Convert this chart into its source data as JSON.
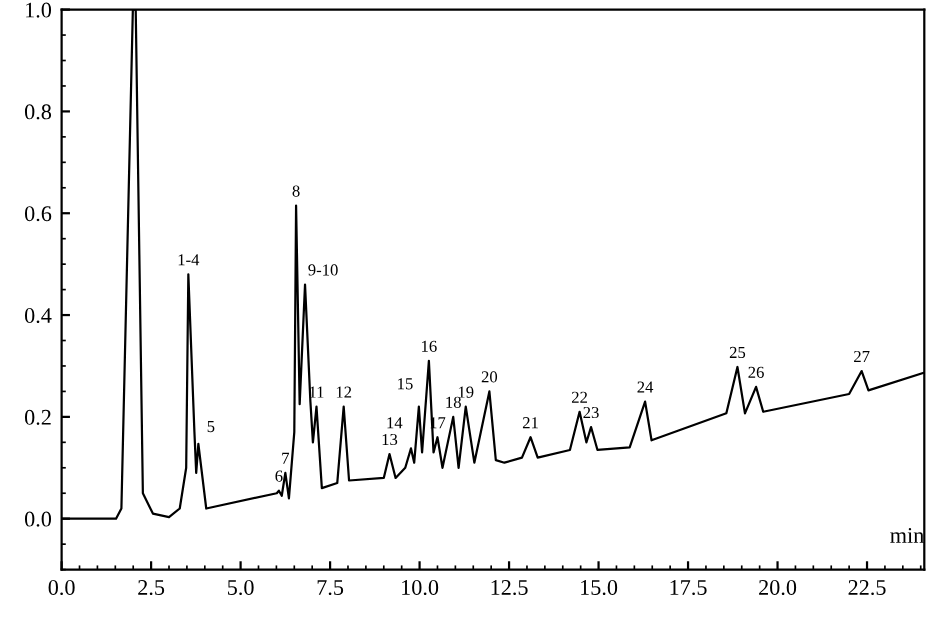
{
  "chart_data": {
    "type": "line",
    "xlabel": "min",
    "xlim": [
      0,
      24.1
    ],
    "ylim": [
      -0.1,
      1.0
    ],
    "xticks": [
      {
        "value": 0,
        "label": "0.0"
      },
      {
        "value": 2.5,
        "label": "2.5"
      },
      {
        "value": 5,
        "label": "5.0"
      },
      {
        "value": 7.5,
        "label": "7.5"
      },
      {
        "value": 10,
        "label": "10.0"
      },
      {
        "value": 12.5,
        "label": "12.5"
      },
      {
        "value": 15,
        "label": "15.0"
      },
      {
        "value": 17.5,
        "label": "17.5"
      },
      {
        "value": 20,
        "label": "20.0"
      },
      {
        "value": 22.5,
        "label": "22.5"
      }
    ],
    "yticks": [
      {
        "value": 0,
        "label": "0.0"
      },
      {
        "value": 0.2,
        "label": "0.2"
      },
      {
        "value": 0.4,
        "label": "0.4"
      },
      {
        "value": 0.6,
        "label": "0.6"
      },
      {
        "value": 0.8,
        "label": "0.8"
      },
      {
        "value": 1.0,
        "label": "1.0"
      }
    ],
    "grid": false,
    "marker": "none",
    "line_style": "solid",
    "series": [
      {
        "color": "#000000",
        "x": [
          0,
          1.52,
          1.67,
          1.99,
          2.07,
          2.27,
          2.55,
          3.0,
          3.3,
          3.48,
          3.54,
          3.71,
          3.76,
          3.82,
          4.04,
          6.01,
          6.07,
          6.15,
          6.25,
          6.35,
          6.5,
          6.55,
          6.65,
          6.8,
          6.95,
          7.02,
          7.12,
          7.27,
          7.7,
          7.88,
          8.03,
          9.0,
          9.16,
          9.33,
          9.6,
          9.76,
          9.85,
          9.98,
          10.07,
          10.26,
          10.39,
          10.5,
          10.64,
          10.94,
          11.09,
          11.29,
          11.53,
          11.95,
          12.13,
          12.37,
          12.86,
          13.1,
          13.3,
          14.2,
          14.47,
          14.66,
          14.79,
          14.97,
          15.87,
          16.3,
          16.48,
          18.57,
          18.88,
          19.09,
          19.4,
          19.6,
          22.0,
          22.35,
          22.54,
          24.1
        ],
        "values": [
          0,
          0,
          0.02,
          1.0,
          1.0,
          0.05,
          0.01,
          0.003,
          0.02,
          0.1,
          0.48,
          0.17,
          0.09,
          0.147,
          0.02,
          0.05,
          0.055,
          0.045,
          0.09,
          0.04,
          0.17,
          0.615,
          0.225,
          0.46,
          0.23,
          0.15,
          0.22,
          0.06,
          0.07,
          0.22,
          0.075,
          0.08,
          0.127,
          0.08,
          0.1,
          0.138,
          0.11,
          0.22,
          0.13,
          0.31,
          0.13,
          0.16,
          0.1,
          0.2,
          0.1,
          0.22,
          0.11,
          0.25,
          0.115,
          0.11,
          0.12,
          0.16,
          0.12,
          0.135,
          0.21,
          0.15,
          0.18,
          0.135,
          0.14,
          0.23,
          0.154,
          0.207,
          0.298,
          0.207,
          0.259,
          0.21,
          0.245,
          0.29,
          0.252,
          0.287
        ]
      }
    ],
    "annotations": [
      {
        "text": "1-4",
        "x": 3.54,
        "y": 0.48
      },
      {
        "text": "5",
        "x": 3.82,
        "y": 0.147
      },
      {
        "text": "6",
        "x": 6.07,
        "y": 0.055
      },
      {
        "text": "7",
        "x": 6.25,
        "y": 0.09
      },
      {
        "text": "8",
        "x": 6.55,
        "y": 0.615
      },
      {
        "text": "9-10",
        "x": 6.8,
        "y": 0.46
      },
      {
        "text": "11",
        "x": 7.12,
        "y": 0.22
      },
      {
        "text": "12",
        "x": 7.88,
        "y": 0.22
      },
      {
        "text": "13",
        "x": 9.16,
        "y": 0.127
      },
      {
        "text": "14",
        "x": 9.76,
        "y": 0.138
      },
      {
        "text": "15",
        "x": 9.98,
        "y": 0.22
      },
      {
        "text": "16",
        "x": 10.26,
        "y": 0.31
      },
      {
        "text": "17",
        "x": 10.5,
        "y": 0.16
      },
      {
        "text": "18",
        "x": 10.94,
        "y": 0.2
      },
      {
        "text": "19",
        "x": 11.29,
        "y": 0.22
      },
      {
        "text": "20",
        "x": 11.95,
        "y": 0.25
      },
      {
        "text": "21",
        "x": 13.1,
        "y": 0.16
      },
      {
        "text": "22",
        "x": 14.47,
        "y": 0.21
      },
      {
        "text": "23",
        "x": 14.79,
        "y": 0.18
      },
      {
        "text": "24",
        "x": 16.3,
        "y": 0.23
      },
      {
        "text": "25",
        "x": 18.88,
        "y": 0.298
      },
      {
        "text": "26",
        "x": 19.4,
        "y": 0.259
      },
      {
        "text": "27",
        "x": 22.35,
        "y": 0.29
      }
    ]
  }
}
